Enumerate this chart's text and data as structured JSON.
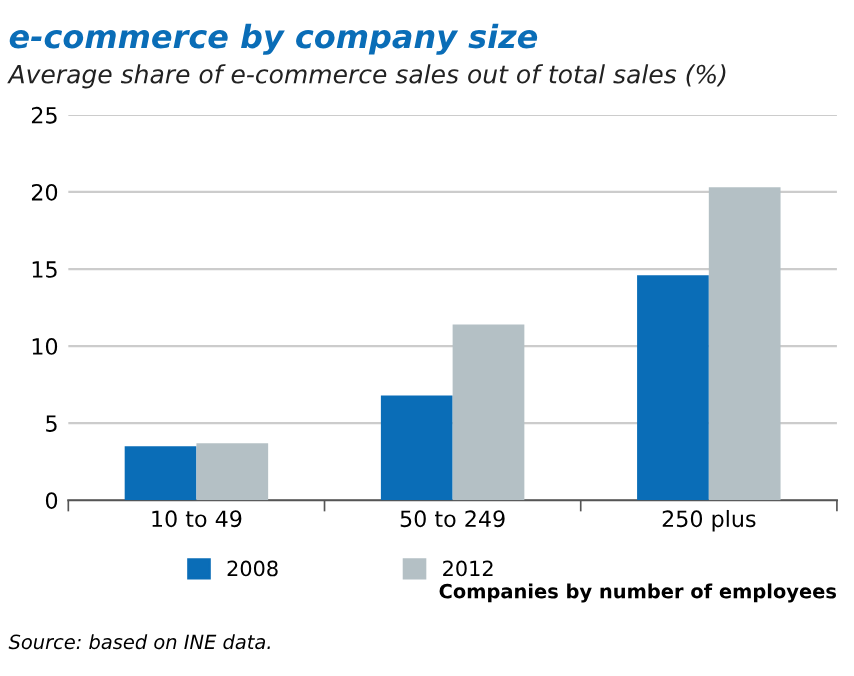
{
  "chart_data": {
    "type": "bar",
    "title": "e-commerce by company size",
    "subtitle": "Average share of e-commerce sales out of total sales (%)",
    "xlabel": "Companies by number of employees",
    "categories": [
      "10 to 49",
      "50 to 249",
      "250 plus"
    ],
    "series": [
      {
        "name": "2008",
        "color": "#0a6db7",
        "values": [
          3.5,
          6.8,
          14.6
        ]
      },
      {
        "name": "2012",
        "color": "#b4c0c5",
        "values": [
          3.7,
          11.4,
          20.3
        ]
      }
    ],
    "ylim": [
      0,
      25
    ],
    "yticks": [
      0,
      5,
      10,
      15,
      20,
      25
    ],
    "grid": "y",
    "legend": "bottom",
    "annotations": [
      "Source: based on INE data."
    ]
  }
}
